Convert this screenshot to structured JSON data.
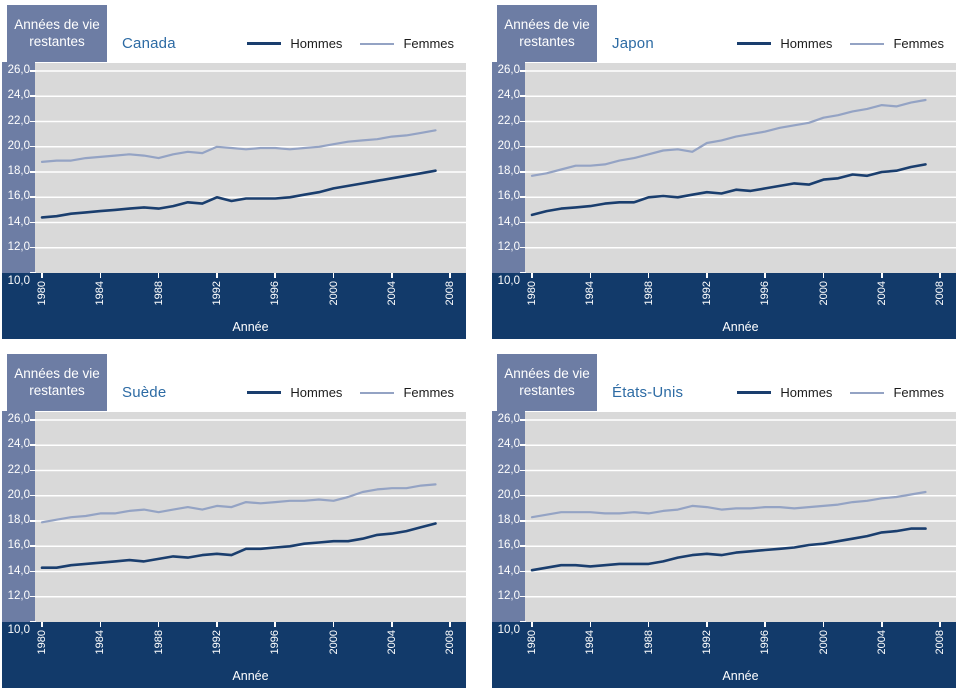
{
  "colors": {
    "slate_band": "#6d7da4",
    "navy_band": "#123a6a",
    "plot_bg": "#d9d9d9",
    "gridline": "#ffffff",
    "hommes_line": "#1a3e6e",
    "femmes_line": "#94a3c4",
    "title_text": "#2d6ba4",
    "legend_text": "#1c1c1c",
    "axis_text": "#ffffff"
  },
  "y_axis": {
    "label_lines": [
      "Années de vie",
      "restantes"
    ],
    "min": 10,
    "max": 26,
    "step": 2,
    "tick_labels": [
      "26,0",
      "24,0",
      "22,0",
      "20,0",
      "18,0",
      "16,0",
      "14,0",
      "12,0",
      "10,0"
    ]
  },
  "x_axis": {
    "label": "Année",
    "tick_labels": [
      "1980",
      "1984",
      "1988",
      "1992",
      "1996",
      "2000",
      "2004",
      "2008"
    ],
    "min": 1980,
    "max": 2008
  },
  "legend": [
    {
      "name": "Hommes",
      "color_key": "hommes_line"
    },
    {
      "name": "Femmes",
      "color_key": "femmes_line"
    }
  ],
  "chart_data": [
    {
      "type": "line",
      "title": "Canada",
      "xlabel": "Année",
      "ylabel": "Années de vie restantes",
      "ylim": [
        10,
        26
      ],
      "xlim": [
        1980,
        2008
      ],
      "grid": true,
      "legend_position": "top",
      "x": [
        1980,
        1981,
        1982,
        1983,
        1984,
        1985,
        1986,
        1987,
        1988,
        1989,
        1990,
        1991,
        1992,
        1993,
        1994,
        1995,
        1996,
        1997,
        1998,
        1999,
        2000,
        2001,
        2002,
        2003,
        2004,
        2005,
        2006,
        2007
      ],
      "series": [
        {
          "name": "Hommes",
          "values": [
            14.4,
            14.5,
            14.7,
            14.8,
            14.9,
            15.0,
            15.1,
            15.2,
            15.1,
            15.3,
            15.6,
            15.5,
            16.0,
            15.7,
            15.9,
            15.9,
            15.9,
            16.0,
            16.2,
            16.4,
            16.7,
            16.9,
            17.1,
            17.3,
            17.5,
            17.7,
            17.9,
            18.1
          ]
        },
        {
          "name": "Femmes",
          "values": [
            18.8,
            18.9,
            18.9,
            19.1,
            19.2,
            19.3,
            19.4,
            19.3,
            19.1,
            19.4,
            19.6,
            19.5,
            20.0,
            19.9,
            19.8,
            19.9,
            19.9,
            19.8,
            19.9,
            20.0,
            20.2,
            20.4,
            20.5,
            20.6,
            20.8,
            20.9,
            21.1,
            21.3
          ]
        }
      ]
    },
    {
      "type": "line",
      "title": "Japon",
      "xlabel": "Année",
      "ylabel": "Années de vie restantes",
      "ylim": [
        10,
        26
      ],
      "xlim": [
        1980,
        2008
      ],
      "grid": true,
      "legend_position": "top",
      "x": [
        1980,
        1981,
        1982,
        1983,
        1984,
        1985,
        1986,
        1987,
        1988,
        1989,
        1990,
        1991,
        1992,
        1993,
        1994,
        1995,
        1996,
        1997,
        1998,
        1999,
        2000,
        2001,
        2002,
        2003,
        2004,
        2005,
        2006,
        2007
      ],
      "series": [
        {
          "name": "Hommes",
          "values": [
            14.6,
            14.9,
            15.1,
            15.2,
            15.3,
            15.5,
            15.6,
            15.6,
            16.0,
            16.1,
            16.0,
            16.2,
            16.4,
            16.3,
            16.6,
            16.5,
            16.7,
            16.9,
            17.1,
            17.0,
            17.4,
            17.5,
            17.8,
            17.7,
            18.0,
            18.1,
            18.4,
            18.6
          ]
        },
        {
          "name": "Femmes",
          "values": [
            17.7,
            17.9,
            18.2,
            18.5,
            18.5,
            18.6,
            18.9,
            19.1,
            19.4,
            19.7,
            19.8,
            19.6,
            20.3,
            20.5,
            20.8,
            21.0,
            21.2,
            21.5,
            21.7,
            21.9,
            22.3,
            22.5,
            22.8,
            23.0,
            23.3,
            23.2,
            23.5,
            23.7
          ]
        }
      ]
    },
    {
      "type": "line",
      "title": "Suède",
      "xlabel": "Année",
      "ylabel": "Années de vie restantes",
      "ylim": [
        10,
        26
      ],
      "xlim": [
        1980,
        2008
      ],
      "grid": true,
      "legend_position": "top",
      "x": [
        1980,
        1981,
        1982,
        1983,
        1984,
        1985,
        1986,
        1987,
        1988,
        1989,
        1990,
        1991,
        1992,
        1993,
        1994,
        1995,
        1996,
        1997,
        1998,
        1999,
        2000,
        2001,
        2002,
        2003,
        2004,
        2005,
        2006,
        2007
      ],
      "series": [
        {
          "name": "Hommes",
          "values": [
            14.3,
            14.3,
            14.5,
            14.6,
            14.7,
            14.8,
            14.9,
            14.8,
            15.0,
            15.2,
            15.1,
            15.3,
            15.4,
            15.3,
            15.8,
            15.8,
            15.9,
            16.0,
            16.2,
            16.3,
            16.4,
            16.4,
            16.6,
            16.9,
            17.0,
            17.2,
            17.5,
            17.8
          ]
        },
        {
          "name": "Femmes",
          "values": [
            17.9,
            18.1,
            18.3,
            18.4,
            18.6,
            18.6,
            18.8,
            18.9,
            18.7,
            18.9,
            19.1,
            18.9,
            19.2,
            19.1,
            19.5,
            19.4,
            19.5,
            19.6,
            19.6,
            19.7,
            19.6,
            19.9,
            20.3,
            20.5,
            20.6,
            20.6,
            20.8,
            20.9
          ]
        }
      ]
    },
    {
      "type": "line",
      "title": "États-Unis",
      "xlabel": "Année",
      "ylabel": "Années de vie restantes",
      "ylim": [
        10,
        26
      ],
      "xlim": [
        1980,
        2008
      ],
      "grid": true,
      "legend_position": "top",
      "x": [
        1980,
        1981,
        1982,
        1983,
        1984,
        1985,
        1986,
        1987,
        1988,
        1989,
        1990,
        1991,
        1992,
        1993,
        1994,
        1995,
        1996,
        1997,
        1998,
        1999,
        2000,
        2001,
        2002,
        2003,
        2004,
        2005,
        2006,
        2007
      ],
      "series": [
        {
          "name": "Hommes",
          "values": [
            14.1,
            14.3,
            14.5,
            14.5,
            14.4,
            14.5,
            14.6,
            14.6,
            14.6,
            14.8,
            15.1,
            15.3,
            15.4,
            15.3,
            15.5,
            15.6,
            15.7,
            15.8,
            15.9,
            16.1,
            16.2,
            16.4,
            16.6,
            16.8,
            17.1,
            17.2,
            17.4,
            17.4
          ]
        },
        {
          "name": "Femmes",
          "values": [
            18.3,
            18.5,
            18.7,
            18.7,
            18.7,
            18.6,
            18.6,
            18.7,
            18.6,
            18.8,
            18.9,
            19.2,
            19.1,
            18.9,
            19.0,
            19.0,
            19.1,
            19.1,
            19.0,
            19.1,
            19.2,
            19.3,
            19.5,
            19.6,
            19.8,
            19.9,
            20.1,
            20.3
          ]
        }
      ]
    }
  ]
}
